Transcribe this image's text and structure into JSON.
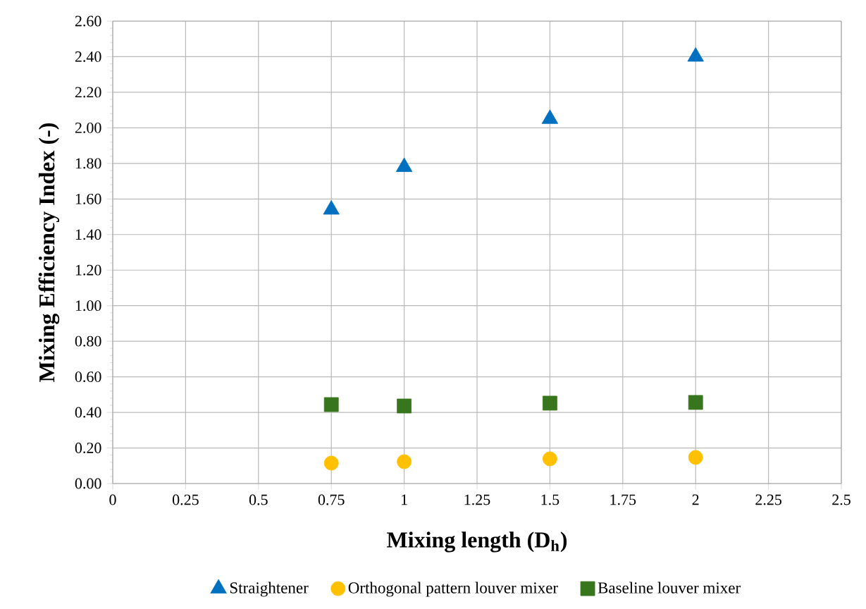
{
  "chart_data": {
    "type": "scatter",
    "xlabel": "Mixing length (D$_{h}$)",
    "ylabel": "Mixing Efficiency Index (-)",
    "xlim": [
      0,
      2.5
    ],
    "xticks": [
      0,
      0.25,
      0.5,
      0.75,
      1,
      1.25,
      1.5,
      1.75,
      2,
      2.25,
      2.5
    ],
    "ylim": [
      0,
      2.6
    ],
    "yticks": [
      {
        "value": 0,
        "label": "0.00"
      },
      {
        "value": 0.2,
        "label": "0.20"
      },
      {
        "value": 0.4,
        "label": "0.40"
      },
      {
        "value": 0.6,
        "label": "0.60"
      },
      {
        "value": 0.8,
        "label": "0.80"
      },
      {
        "value": 1,
        "label": "1.00"
      },
      {
        "value": 1.2,
        "label": "1.20"
      },
      {
        "value": 1.4,
        "label": "1.40"
      },
      {
        "value": 1.6,
        "label": "1.60"
      },
      {
        "value": 1.8,
        "label": "1.80"
      },
      {
        "value": 2,
        "label": "2.00"
      },
      {
        "value": 2.2,
        "label": "2.20"
      },
      {
        "value": 2.4,
        "label": "2.40"
      },
      {
        "value": 2.6,
        "label": "2.60"
      }
    ],
    "grid": true,
    "legend": "bottom",
    "series": [
      {
        "name": "Straightener",
        "color": "#0070c0",
        "marker": "triangle",
        "x": [
          0.75,
          1,
          1.5,
          2
        ],
        "values": [
          1.54,
          1.78,
          2.05,
          2.4
        ]
      },
      {
        "name": "Orthogonal pattern louver mixer",
        "color": "#ffc000",
        "marker": "circle",
        "x": [
          0.75,
          1,
          1.5,
          2
        ],
        "values": [
          0.115,
          0.123,
          0.139,
          0.147
        ]
      },
      {
        "name": "Baseline louver mixer",
        "color": "#38761d",
        "marker": "square",
        "x": [
          0.75,
          1,
          1.5,
          2
        ],
        "values": [
          0.444,
          0.436,
          0.452,
          0.456
        ]
      }
    ]
  }
}
